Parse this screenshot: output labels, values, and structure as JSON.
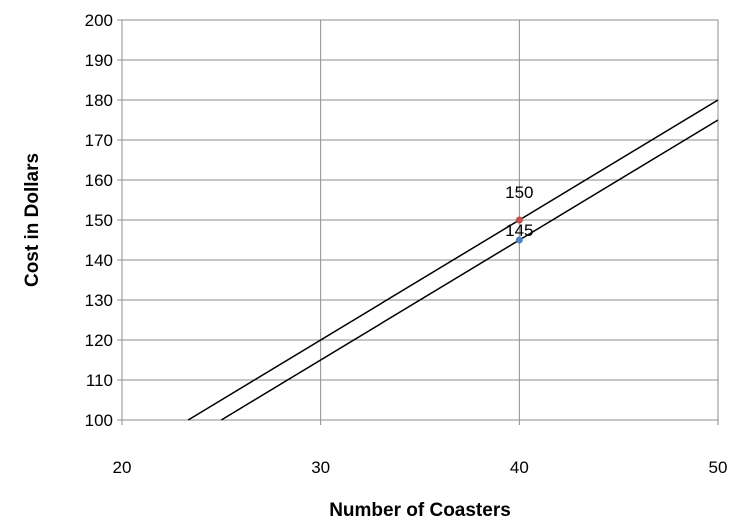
{
  "chart_data": {
    "type": "line",
    "title": "",
    "xlabel": "Number of Coasters",
    "ylabel": "Cost in Dollars",
    "xlim": [
      20,
      50
    ],
    "ylim": [
      100,
      200
    ],
    "x_ticks": [
      "20",
      "30",
      "40",
      "50"
    ],
    "y_ticks": [
      "100",
      "110",
      "120",
      "130",
      "140",
      "150",
      "160",
      "170",
      "180",
      "190",
      "200"
    ],
    "grid": true,
    "legend": "none",
    "series": [
      {
        "x": [
          23.33,
          50
        ],
        "y": [
          100,
          180
        ],
        "color": "#000000"
      },
      {
        "x": [
          25,
          50
        ],
        "y": [
          100,
          175
        ],
        "color": "#000000"
      }
    ],
    "points": [
      {
        "x": 40,
        "y": 150,
        "label": "150",
        "color": "#c0504d"
      },
      {
        "x": 40,
        "y": 145,
        "label": "145",
        "color": "#4f81bd"
      }
    ]
  }
}
